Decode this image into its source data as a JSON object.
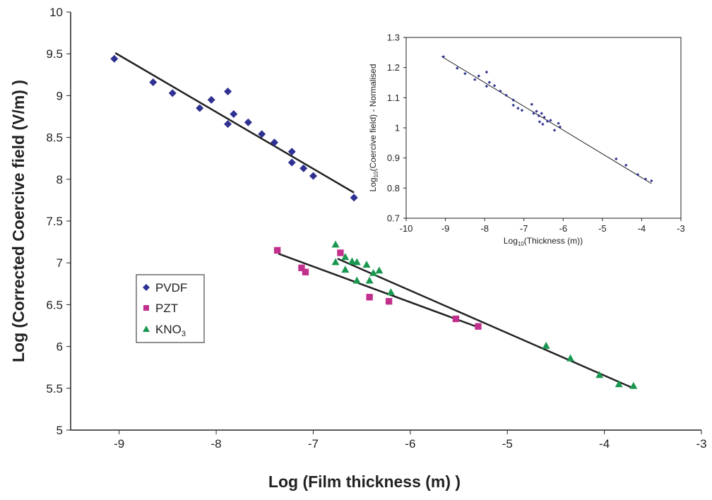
{
  "chart_data": [
    {
      "type": "scatter",
      "title": "",
      "xlabel": "Log (Film thickness (m) )",
      "ylabel": "Log (Corrected Coercive field (V/m) )",
      "xlim": [
        -9.5,
        -3
      ],
      "ylim": [
        5,
        10
      ],
      "xticks": [
        "-9",
        "-8",
        "-7",
        "-6",
        "-5",
        "-4",
        "-3"
      ],
      "yticks": [
        "5",
        "5.5",
        "6",
        "6.5",
        "7",
        "7.5",
        "8",
        "8.5",
        "9",
        "9.5",
        "10"
      ],
      "grid": false,
      "legend_position": "left-middle",
      "series": [
        {
          "name": "PVDF",
          "marker": "diamond",
          "color": "#2E3192",
          "points": [
            [
              -9.05,
              9.44
            ],
            [
              -8.65,
              9.16
            ],
            [
              -8.45,
              9.03
            ],
            [
              -8.17,
              8.85
            ],
            [
              -8.05,
              8.95
            ],
            [
              -7.88,
              9.05
            ],
            [
              -7.88,
              8.66
            ],
            [
              -7.82,
              8.78
            ],
            [
              -7.67,
              8.68
            ],
            [
              -7.53,
              8.54
            ],
            [
              -7.4,
              8.44
            ],
            [
              -7.22,
              8.33
            ],
            [
              -7.22,
              8.2
            ],
            [
              -7.1,
              8.13
            ],
            [
              -7.0,
              8.04
            ],
            [
              -6.58,
              7.78
            ]
          ],
          "trend": [
            [
              -9.04,
              9.51
            ],
            [
              -6.58,
              7.84
            ]
          ]
        },
        {
          "name": "PZT",
          "marker": "square",
          "color": "#C2308E",
          "points": [
            [
              -7.37,
              7.15
            ],
            [
              -7.12,
              6.94
            ],
            [
              -7.08,
              6.89
            ],
            [
              -6.72,
              7.12
            ],
            [
              -6.42,
              6.59
            ],
            [
              -6.22,
              6.54
            ],
            [
              -5.53,
              6.33
            ],
            [
              -5.3,
              6.24
            ]
          ],
          "trend": [
            [
              -7.36,
              7.11
            ],
            [
              -5.3,
              6.23
            ]
          ]
        },
        {
          "name": "KNO3",
          "name_base": "KNO",
          "name_subscript": "3",
          "marker": "triangle",
          "color": "#1A9850",
          "points": [
            [
              -6.77,
              7.22
            ],
            [
              -6.77,
              7.01
            ],
            [
              -6.67,
              7.07
            ],
            [
              -6.67,
              6.92
            ],
            [
              -6.6,
              7.02
            ],
            [
              -6.55,
              7.01
            ],
            [
              -6.55,
              6.79
            ],
            [
              -6.45,
              6.98
            ],
            [
              -6.42,
              6.79
            ],
            [
              -6.38,
              6.88
            ],
            [
              -6.32,
              6.91
            ],
            [
              -6.2,
              6.65
            ],
            [
              -4.6,
              6.01
            ],
            [
              -4.35,
              5.86
            ],
            [
              -4.05,
              5.66
            ],
            [
              -3.85,
              5.55
            ],
            [
              -3.7,
              5.53
            ]
          ],
          "trend": [
            [
              -6.75,
              7.05
            ],
            [
              -3.7,
              5.5
            ]
          ]
        }
      ]
    },
    {
      "type": "scatter",
      "title": "",
      "xlabel_prefix": "Log",
      "xlabel_sub": "10",
      "xlabel_rest": "(Thickness (m))",
      "ylabel_prefix": "Log",
      "ylabel_sub": "10",
      "ylabel_rest": "(Coercive field) - Normalised",
      "xlim": [
        -10,
        -3
      ],
      "ylim": [
        0.7,
        1.3
      ],
      "xticks": [
        "-10",
        "-9",
        "-8",
        "-7",
        "-6",
        "-5",
        "-4",
        "-3"
      ],
      "yticks": [
        "0.7",
        "0.8",
        "0.9",
        "1",
        "1.1",
        "1.2",
        "1.3"
      ],
      "grid": false,
      "series": [
        {
          "marker": "diamond",
          "color": "#2E3192",
          "points": [
            [
              -9.05,
              1.236
            ],
            [
              -8.7,
              1.198
            ],
            [
              -8.5,
              1.18
            ],
            [
              -8.25,
              1.16
            ],
            [
              -8.15,
              1.172
            ],
            [
              -7.95,
              1.185
            ],
            [
              -7.95,
              1.138
            ],
            [
              -7.88,
              1.151
            ],
            [
              -7.75,
              1.14
            ],
            [
              -7.6,
              1.122
            ],
            [
              -7.45,
              1.108
            ],
            [
              -7.27,
              1.092
            ],
            [
              -7.27,
              1.075
            ],
            [
              -7.15,
              1.065
            ],
            [
              -7.05,
              1.058
            ],
            [
              -6.8,
              1.078
            ],
            [
              -6.75,
              1.048
            ],
            [
              -6.68,
              1.055
            ],
            [
              -6.62,
              1.04
            ],
            [
              -6.6,
              1.02
            ],
            [
              -6.55,
              1.048
            ],
            [
              -6.52,
              1.012
            ],
            [
              -6.48,
              1.035
            ],
            [
              -6.4,
              1.022
            ],
            [
              -6.32,
              1.025
            ],
            [
              -6.22,
              0.992
            ],
            [
              -6.12,
              1.015
            ],
            [
              -6.08,
              1.003
            ],
            [
              -4.65,
              0.897
            ],
            [
              -4.4,
              0.876
            ],
            [
              -4.1,
              0.845
            ],
            [
              -3.9,
              0.83
            ],
            [
              -3.75,
              0.824
            ]
          ],
          "trend": [
            [
              -9.1,
              1.237
            ],
            [
              -3.75,
              0.815
            ]
          ]
        }
      ]
    }
  ]
}
